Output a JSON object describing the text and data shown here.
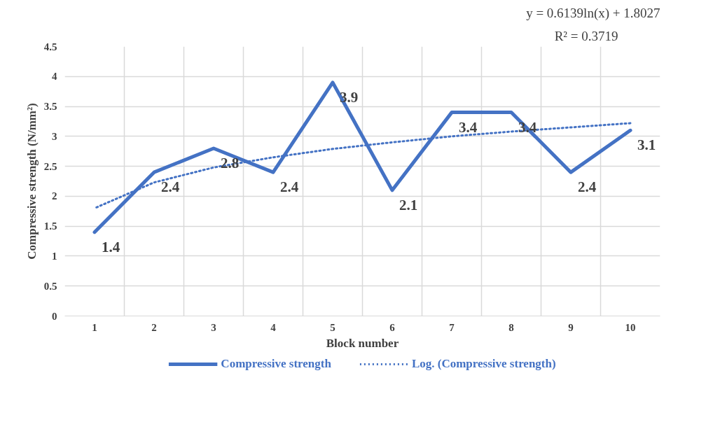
{
  "chart_data": {
    "type": "line",
    "xlabel": "Block number",
    "ylabel": "Compressive strength (N/mm²)",
    "categories": [
      "1",
      "2",
      "3",
      "4",
      "5",
      "6",
      "7",
      "8",
      "9",
      "10"
    ],
    "series": [
      {
        "name": "Compressive strength",
        "color": "#4472c4",
        "values": [
          1.4,
          2.4,
          2.8,
          2.4,
          3.9,
          2.1,
          3.4,
          3.4,
          2.4,
          3.1
        ],
        "data_labels": true,
        "line_style": "solid"
      },
      {
        "name": "Log. (Compressive strength)",
        "color": "#4472c4",
        "values": [
          1.8,
          2.23,
          2.48,
          2.65,
          2.79,
          2.9,
          3.0,
          3.08,
          3.15,
          3.22
        ],
        "line_style": "dotted"
      }
    ],
    "ylim": [
      0,
      4.5
    ],
    "yticks": [
      0,
      0.5,
      1,
      1.5,
      2,
      2.5,
      3,
      3.5,
      4,
      4.5
    ],
    "annotations": [
      "y = 0.6139ln(x) + 1.8027",
      "R² = 0.3719"
    ],
    "grid": true,
    "legend": "bottom",
    "marker": "none"
  }
}
